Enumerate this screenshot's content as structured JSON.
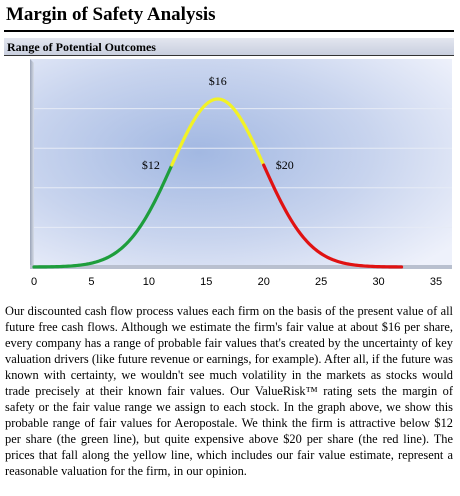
{
  "header": {
    "title": "Margin of Safety Analysis",
    "subtitle": "Range of Potential Outcomes"
  },
  "chart_data": {
    "type": "line",
    "title": "",
    "xlabel": "",
    "ylabel": "",
    "xlim": [
      0,
      35
    ],
    "xticks": [
      0,
      5,
      10,
      15,
      20,
      25,
      30,
      35
    ],
    "grid": "horizontal",
    "curve": {
      "kind": "bell",
      "mean": 16,
      "x_start": 0,
      "x_end": 32
    },
    "segments": [
      {
        "name": "green",
        "color": "#1e9e3c",
        "from": 0,
        "to": 12
      },
      {
        "name": "yellow",
        "color": "#f2f226",
        "from": 12,
        "to": 20
      },
      {
        "name": "red",
        "color": "#e01212",
        "from": 20,
        "to": 32
      }
    ],
    "annotations": [
      {
        "text": "$12",
        "x": 12
      },
      {
        "text": "$16",
        "x": 16
      },
      {
        "text": "$20",
        "x": 20
      }
    ]
  },
  "description": "Our discounted cash flow process values each firm on the basis of the present value of all future free cash flows. Although we estimate the firm's fair value at about $16 per share, every company has a range of probable fair values that's created by the uncertainty of key valuation drivers (like future revenue or earnings, for example). After all, if the future was known with certainty, we wouldn't see much volatility in the markets as stocks would trade precisely at their known fair values. Our ValueRisk™ rating sets the margin of safety or the fair value range we assign to each stock. In the graph above, we show this probable range of fair values for Aeropostale. We think the firm is attractive below $12 per share (the green line), but quite expensive above $20 per share (the red line). The prices that fall along the yellow line, which includes our fair value estimate, represent a reasonable valuation for the firm, in our opinion."
}
